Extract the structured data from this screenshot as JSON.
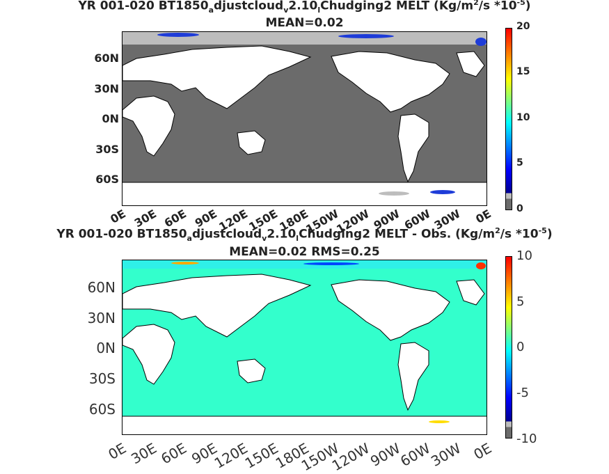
{
  "panels": [
    {
      "title_parts": [
        "YR 001-020 BT1850",
        "a",
        "djustcloud",
        "v",
        "2.10",
        "l",
        "Chudging2 MELT (Kg/m",
        "2",
        "/s  *10",
        "-5",
        ")"
      ],
      "subtitle": "MEAN=0.02",
      "lat_ticks": [
        "60N",
        "30N",
        "0N",
        "30S",
        "60S"
      ],
      "lon_ticks": [
        "0E",
        "30E",
        "60E",
        "90E",
        "120E",
        "150E",
        "180E",
        "150W",
        "120W",
        "90W",
        "60W",
        "30W",
        "0E"
      ],
      "colorbar_ticks": [
        "20",
        "15",
        "10",
        "5",
        "0"
      ],
      "colors": {
        "ocean": "#6b6b6b",
        "land": "#ffffff",
        "ice_low": "#bdbdbd",
        "ice_high": "#1e3cd8"
      }
    },
    {
      "title_parts": [
        "YR 001-020 BT1850",
        "a",
        "djustcloud",
        "v",
        "2.10",
        "l",
        "Chudging2 MELT - Obs. (Kg/m",
        "2",
        "/s *10",
        "-5",
        ")"
      ],
      "subtitle": "MEAN=0.02   RMS=0.25",
      "lat_ticks": [
        "60N",
        "30N",
        "0N",
        "30S",
        "60S"
      ],
      "lon_ticks": [
        "0E",
        "30E",
        "60E",
        "90E",
        "120E",
        "150E",
        "180E",
        "150W",
        "120W",
        "90W",
        "60W",
        "30W",
        "0E"
      ],
      "colorbar_ticks": [
        "10",
        "5",
        "0",
        "-5",
        "-10"
      ],
      "colors": {
        "ocean": "#33ffcc",
        "land": "#ffffff",
        "pos": "#ff6a00",
        "neg": "#0000cc"
      }
    }
  ],
  "chart_data": [
    {
      "type": "heatmap",
      "variable": "MELT",
      "units": "Kg/m2/s *10^-5",
      "mean": 0.02,
      "colorbar_range": [
        0,
        20
      ],
      "colorbar_ticks": [
        0,
        5,
        10,
        15,
        20
      ],
      "x_range": [
        0,
        360
      ],
      "y_range": [
        -90,
        90
      ]
    },
    {
      "type": "heatmap",
      "variable": "MELT - Obs.",
      "units": "Kg/m2/s *10^-5",
      "mean": 0.02,
      "rms": 0.25,
      "colorbar_range": [
        -10,
        10
      ],
      "colorbar_ticks": [
        -10,
        -5,
        0,
        5,
        10
      ],
      "x_range": [
        0,
        360
      ],
      "y_range": [
        -90,
        90
      ]
    }
  ]
}
